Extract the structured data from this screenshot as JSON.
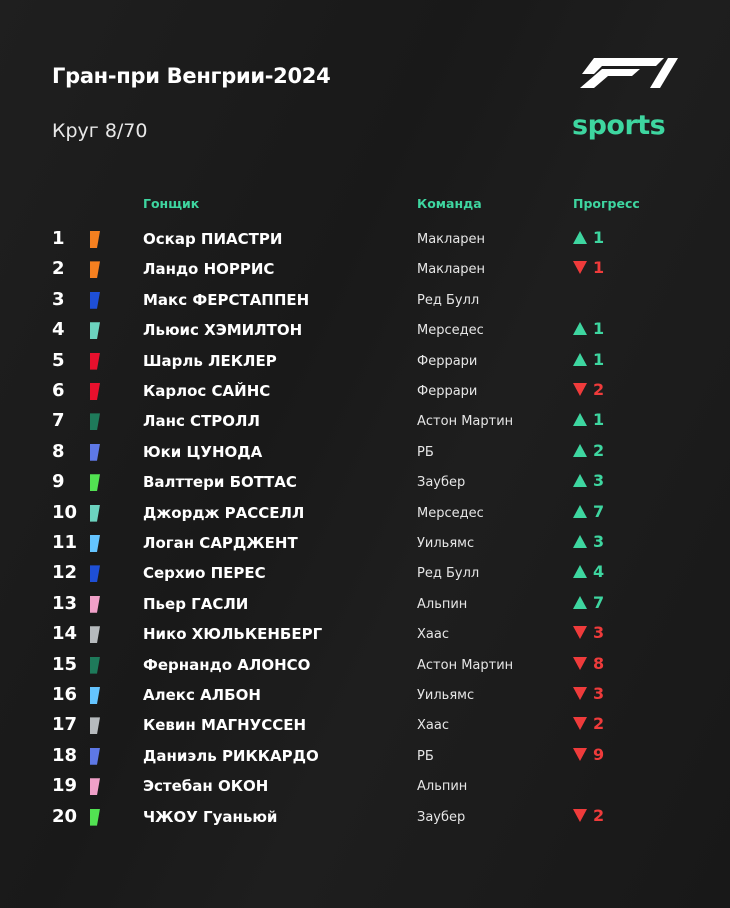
{
  "header": {
    "title": "Гран-при Венгрии-2024",
    "lap": "Круг 8/70",
    "brand": "sports",
    "logo": "F1"
  },
  "columns": {
    "driver": "Гонщик",
    "team": "Команда",
    "progress": "Прогресс"
  },
  "colors": {
    "accent": "#3ed6a0",
    "up": "#3ed6a0",
    "down": "#ef3b3b"
  },
  "rows": [
    {
      "pos": "1",
      "name": "Оскар ПИАСТРИ",
      "team": "Макларен",
      "color": "#f58020",
      "dir": "up",
      "change": "1"
    },
    {
      "pos": "2",
      "name": "Ландо НОРРИС",
      "team": "Макларен",
      "color": "#f58020",
      "dir": "down",
      "change": "1"
    },
    {
      "pos": "3",
      "name": "Макс ФЕРСТАППЕН",
      "team": "Ред Булл",
      "color": "#1e4fd6",
      "dir": "",
      "change": ""
    },
    {
      "pos": "4",
      "name": "Льюис ХЭМИЛТОН",
      "team": "Мерседес",
      "color": "#6cd3bf",
      "dir": "up",
      "change": "1"
    },
    {
      "pos": "5",
      "name": "Шарль ЛЕКЛЕР",
      "team": "Феррари",
      "color": "#e8102d",
      "dir": "up",
      "change": "1"
    },
    {
      "pos": "6",
      "name": "Карлос САЙНС",
      "team": "Феррари",
      "color": "#e8102d",
      "dir": "down",
      "change": "2"
    },
    {
      "pos": "7",
      "name": "Ланс СТРОЛЛ",
      "team": "Астон Мартин",
      "color": "#1e7a5a",
      "dir": "up",
      "change": "1"
    },
    {
      "pos": "8",
      "name": "Юки ЦУНОДА",
      "team": "РБ",
      "color": "#5e78e6",
      "dir": "up",
      "change": "2"
    },
    {
      "pos": "9",
      "name": "Валттери БОТТАС",
      "team": "Заубер",
      "color": "#52e252",
      "dir": "up",
      "change": "3"
    },
    {
      "pos": "10",
      "name": "Джордж РАССЕЛЛ",
      "team": "Мерседес",
      "color": "#6cd3bf",
      "dir": "up",
      "change": "7"
    },
    {
      "pos": "11",
      "name": "Логан САРДЖЕНТ",
      "team": "Уильямс",
      "color": "#64c4ff",
      "dir": "up",
      "change": "3"
    },
    {
      "pos": "12",
      "name": "Серхио ПЕРЕС",
      "team": "Ред Булл",
      "color": "#1e4fd6",
      "dir": "up",
      "change": "4"
    },
    {
      "pos": "13",
      "name": "Пьер ГАСЛИ",
      "team": "Альпин",
      "color": "#f0a0c8",
      "dir": "up",
      "change": "7"
    },
    {
      "pos": "14",
      "name": "Нико ХЮЛЬКЕНБЕРГ",
      "team": "Хаас",
      "color": "#b6babd",
      "dir": "down",
      "change": "3"
    },
    {
      "pos": "15",
      "name": "Фернандо АЛОНСО",
      "team": "Астон Мартин",
      "color": "#1e7a5a",
      "dir": "down",
      "change": "8"
    },
    {
      "pos": "16",
      "name": "Алекс АЛБОН",
      "team": "Уильямс",
      "color": "#64c4ff",
      "dir": "down",
      "change": "3"
    },
    {
      "pos": "17",
      "name": "Кевин МАГНУССЕН",
      "team": "Хаас",
      "color": "#b6babd",
      "dir": "down",
      "change": "2"
    },
    {
      "pos": "18",
      "name": "Даниэль РИККАРДО",
      "team": "РБ",
      "color": "#5e78e6",
      "dir": "down",
      "change": "9"
    },
    {
      "pos": "19",
      "name": "Эстебан ОКОН",
      "team": "Альпин",
      "color": "#f0a0c8",
      "dir": "",
      "change": ""
    },
    {
      "pos": "20",
      "name": "ЧЖОУ Гуаньюй",
      "team": "Заубер",
      "color": "#52e252",
      "dir": "down",
      "change": "2"
    }
  ]
}
